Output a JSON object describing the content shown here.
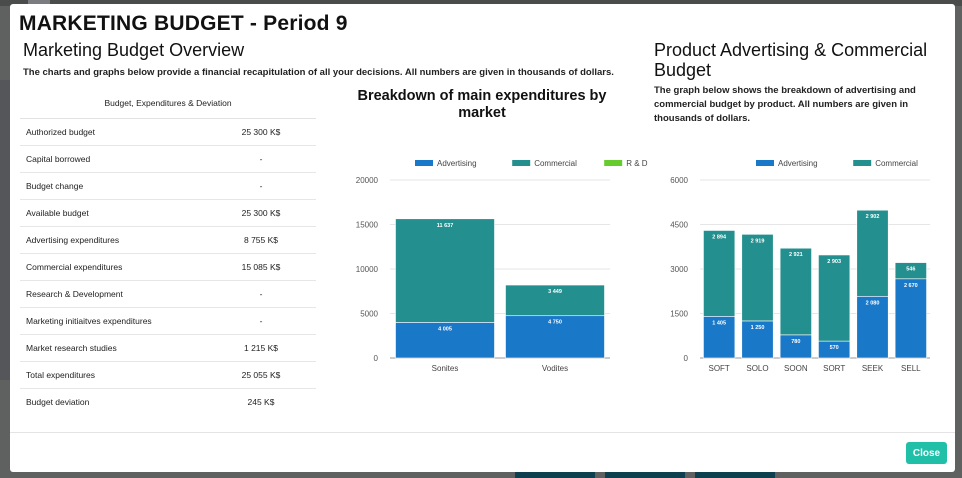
{
  "modal": {
    "title": "MARKETING BUDGET - Period 9",
    "close_label": "Close"
  },
  "overview": {
    "title": "Marketing Budget Overview",
    "description": "The charts and graphs below provide a financial recapitulation of all your decisions. All numbers are given in thousands of dollars."
  },
  "budget_table": {
    "header": "Budget, Expenditures & Deviation",
    "rows": [
      {
        "label": "Authorized budget",
        "value": "25 300 K$"
      },
      {
        "label": "Capital borrowed",
        "value": "-"
      },
      {
        "label": "Budget change",
        "value": "-"
      },
      {
        "label": "Available budget",
        "value": "25 300 K$"
      },
      {
        "label": "Advertising expenditures",
        "value": "8 755 K$"
      },
      {
        "label": "Commercial expenditures",
        "value": "15 085 K$"
      },
      {
        "label": "Research & Development",
        "value": "-"
      },
      {
        "label": "Marketing initiaitves expenditures",
        "value": "-"
      },
      {
        "label": "Market research studies",
        "value": "1 215 K$"
      },
      {
        "label": "Total expenditures",
        "value": "25 055 K$"
      },
      {
        "label": "Budget deviation",
        "value": "245 K$"
      }
    ]
  },
  "product_section": {
    "title": "Product Advertising & Commercial Budget",
    "description": "The graph below shows the breakdown of advertising and commercial budget by product. All numbers are given in thousands of dollars."
  },
  "colors": {
    "advertising": "#1a78c8",
    "commercial": "#23908f",
    "rd": "#66cc2e"
  },
  "chart_data": [
    {
      "type": "bar",
      "stacked": true,
      "title": "Breakdown of main expenditures by market",
      "categories": [
        "Sonites",
        "Vodites"
      ],
      "series": [
        {
          "name": "Advertising",
          "values": [
            4005,
            4750
          ],
          "labels": [
            "4 005",
            "4 750"
          ],
          "color": "#1a78c8"
        },
        {
          "name": "Commercial",
          "values": [
            11637,
            3449
          ],
          "labels": [
            "11 637",
            "3 449"
          ],
          "color": "#23908f"
        },
        {
          "name": "R & D",
          "values": [
            0,
            0
          ],
          "labels": [
            "",
            ""
          ],
          "color": "#66cc2e"
        }
      ],
      "ylim": [
        0,
        20000
      ],
      "yticks": [
        0,
        5000,
        10000,
        15000,
        20000
      ],
      "legend": "top",
      "grid": true
    },
    {
      "type": "bar",
      "stacked": true,
      "title": "",
      "categories": [
        "SOFT",
        "SOLO",
        "SOON",
        "SORT",
        "SEEK",
        "SELL"
      ],
      "series": [
        {
          "name": "Advertising",
          "values": [
            1405,
            1250,
            780,
            570,
            2080,
            2670
          ],
          "labels": [
            "1 405",
            "1 250",
            "780",
            "570",
            "2 080",
            "2 670"
          ],
          "color": "#1a78c8"
        },
        {
          "name": "Commercial",
          "values": [
            2894,
            2919,
            2921,
            2903,
            2902,
            546
          ],
          "labels": [
            "2 894",
            "2 919",
            "2 921",
            "2 903",
            "2 902",
            "546"
          ],
          "color": "#23908f"
        }
      ],
      "ylim": [
        0,
        6000
      ],
      "yticks": [
        0,
        1500,
        3000,
        4500,
        6000
      ],
      "legend": "top",
      "grid": true
    }
  ]
}
